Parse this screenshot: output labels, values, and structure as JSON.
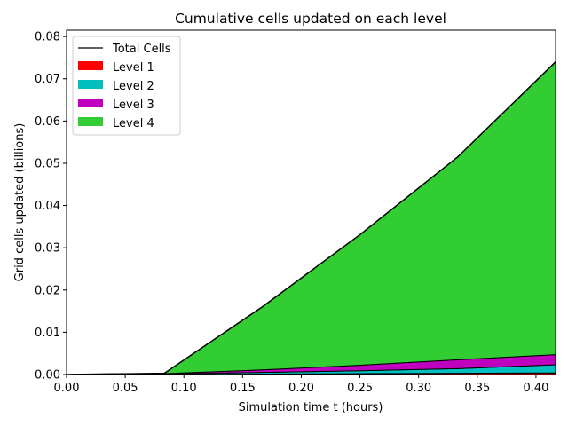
{
  "chart_data": {
    "type": "area",
    "title": "Cumulative cells updated on each level",
    "xlabel": "Simulation time t (hours)",
    "ylabel": "Grid cells updated (billions)",
    "xlim": [
      0.0,
      0.4167
    ],
    "ylim": [
      0.0,
      0.0815
    ],
    "x_ticks": [
      "0.00",
      "0.05",
      "0.10",
      "0.15",
      "0.20",
      "0.25",
      "0.30",
      "0.35",
      "0.40"
    ],
    "y_ticks": [
      "0.00",
      "0.01",
      "0.02",
      "0.03",
      "0.04",
      "0.05",
      "0.06",
      "0.07",
      "0.08"
    ],
    "x": [
      0.0,
      0.0833,
      0.1667,
      0.25,
      0.3333,
      0.4167
    ],
    "stacked": true,
    "series": [
      {
        "name": "Level 1",
        "color": "#ff0000",
        "values": [
          0.0,
          0.0,
          0.0001,
          0.0002,
          0.0003,
          0.0004
        ]
      },
      {
        "name": "Level 2",
        "color": "#00bfbf",
        "values": [
          0.0,
          0.0001,
          0.0004,
          0.0007,
          0.0011,
          0.0019
        ]
      },
      {
        "name": "Level 3",
        "color": "#bf00bf",
        "values": [
          0.0,
          0.0001,
          0.0006,
          0.0013,
          0.0021,
          0.0024
        ]
      },
      {
        "name": "Level 4",
        "color": "#32cd32",
        "values": [
          0.0,
          0.0001,
          0.0149,
          0.0309,
          0.048,
          0.0693
        ]
      }
    ],
    "total_line": {
      "name": "Total Cells",
      "color": "#000000"
    },
    "legend_position": "upper-left",
    "grid": false
  }
}
